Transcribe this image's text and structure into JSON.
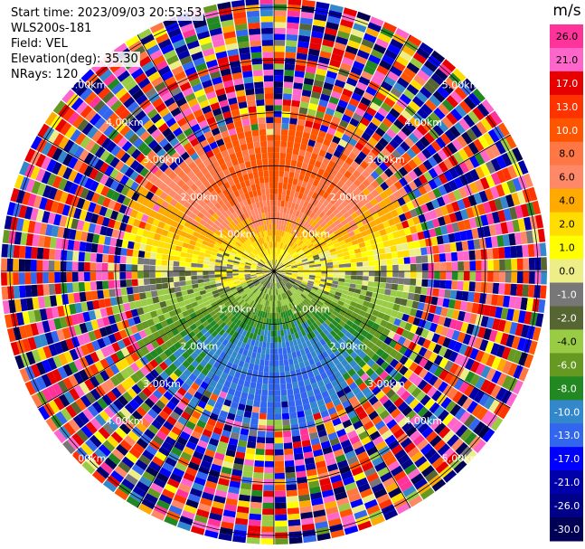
{
  "header": {
    "start_time": "Start time: 2023/09/03 20:53:53",
    "instrument": "WLS200s-181",
    "field": "Field: VEL",
    "elevation": "Elevation(deg): 35.30",
    "nrays": "NRays: 120"
  },
  "chart_data": {
    "type": "heatmap",
    "projection": "polar-ppi",
    "field": "VEL",
    "units": "m/s",
    "nrays": 120,
    "range_rings_km": [
      1.0,
      2.0,
      3.0,
      4.0,
      5.0
    ],
    "range_labels": [
      "1.00km",
      "2.00km",
      "3.00km",
      "4.00km",
      "5.00km"
    ],
    "colorbar": {
      "title": "m/s",
      "ticks": [
        "26.0",
        "21.0",
        "17.0",
        "13.0",
        "10.0",
        "8.0",
        "6.0",
        "4.0",
        "2.0",
        "1.0",
        "0.0",
        "-1.0",
        "-2.0",
        "-4.0",
        "-6.0",
        "-8.0",
        "-10.0",
        "-13.0",
        "-17.0",
        "-21.0",
        "-26.0",
        "-30.0"
      ],
      "colors": [
        "#ff3399",
        "#ff66cc",
        "#e60000",
        "#ff3300",
        "#ff5500",
        "#ff7744",
        "#ff8866",
        "#ffaa00",
        "#ffdd00",
        "#ffff00",
        "#eeee88",
        "#777777",
        "#556633",
        "#99cc44",
        "#669922",
        "#228822",
        "#3388cc",
        "#3366ee",
        "#0000ff",
        "#0000aa",
        "#000088",
        "#000055"
      ]
    },
    "structure": {
      "north_positive_velocity_m_s": [
        6,
        13
      ],
      "south_negative_velocity_m_s": [
        -13,
        -6
      ],
      "near_zero_band_m_s": [
        -2,
        4
      ],
      "noisy_beyond_km": 3.0,
      "grid": true
    }
  }
}
